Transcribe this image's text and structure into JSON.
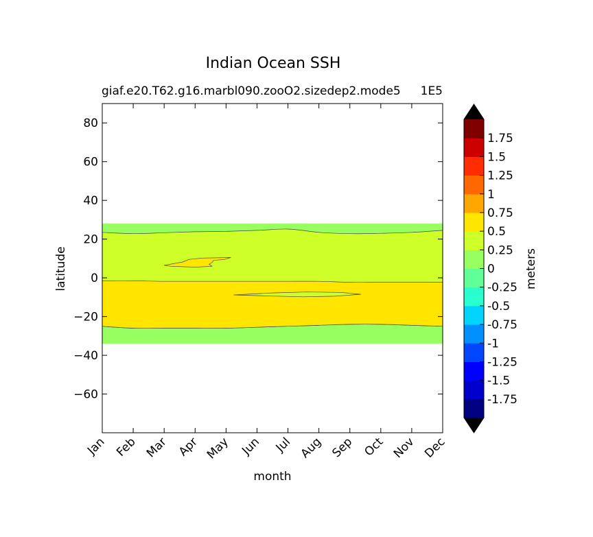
{
  "chart_data": {
    "type": "heatmap",
    "title": "Indian Ocean SSH",
    "subtitle": "giaf.e20.T62.g16.marbl090.zooO2.sizedep2.mode5",
    "subtitle_right": "1E5",
    "xlabel": "month",
    "ylabel": "latitude",
    "colorbar_label": "meters",
    "x_categories": [
      "Jan",
      "Feb",
      "Mar",
      "Apr",
      "May",
      "Jun",
      "Jul",
      "Aug",
      "Sep",
      "Oct",
      "Nov",
      "Dec"
    ],
    "ylim": [
      -80,
      90
    ],
    "y_ticks": [
      80,
      60,
      40,
      20,
      0,
      -20,
      -40,
      -60
    ],
    "y_tick_labels": [
      "80",
      "60",
      "40",
      "20",
      "0",
      "−20",
      "−40",
      "−60"
    ],
    "colorbar": {
      "levels": [
        -2,
        -1.75,
        -1.5,
        -1.25,
        -1,
        -0.75,
        -0.5,
        -0.25,
        0,
        0.25,
        0.5,
        0.75,
        1,
        1.25,
        1.5,
        1.75,
        2
      ],
      "colors": [
        "#000080",
        "#0000cd",
        "#0000ff",
        "#0046ff",
        "#0090ff",
        "#00d4ff",
        "#29ffce",
        "#60ff97",
        "#97ff60",
        "#ceff29",
        "#ffe500",
        "#ffa600",
        "#ff6800",
        "#ff2d00",
        "#cd0000",
        "#800000"
      ],
      "under_color": "#000000",
      "over_color": "#000000",
      "tick_values": [
        1.75,
        1.5,
        1.25,
        1,
        0.75,
        0.5,
        0.25,
        0,
        -0.25,
        -0.5,
        -0.75,
        -1,
        -1.25,
        -1.5,
        -1.75
      ],
      "tick_labels": [
        "1.75",
        "1.5",
        "1.25",
        "1",
        "0.75",
        "0.5",
        "0.25",
        "0",
        "-0.25",
        "-0.5",
        "-0.75",
        "-1",
        "-1.25",
        "-1.5",
        "-1.75"
      ]
    },
    "regions": [
      {
        "name": "data-extent",
        "color": "#97ff60",
        "lat_range": [
          -34,
          28
        ]
      },
      {
        "name": "band-0.25-to-0.5",
        "color": "#ceff29",
        "north_edge": [
          23.5,
          22.8,
          23.3,
          23.8,
          24,
          24.5,
          25.2,
          23.5,
          22.8,
          23,
          23.5,
          24.5
        ],
        "south_edge": [
          -25,
          -26,
          -26,
          -26,
          -26,
          -25.5,
          -25,
          -24.5,
          -24,
          -24,
          -24.5,
          -25
        ]
      },
      {
        "name": "band-0.5-to-0.75-main",
        "color": "#ffe500",
        "north_edge": [
          -1.5,
          -1.5,
          -1.8,
          -1.8,
          -1.8,
          -1.8,
          -1.8,
          -1.8,
          -2.3,
          -2.3,
          -2.3,
          -2.3
        ],
        "south_edge": [
          -25,
          -26,
          -26,
          -26,
          -26,
          -25.5,
          -25,
          -24.5,
          -24,
          -24,
          -24.5,
          -25
        ]
      },
      {
        "name": "patch-0.5-to-0.75-north",
        "color": "#ffe500",
        "outline": [
          [
            2.0,
            6.5
          ],
          [
            2.6,
            8.2
          ],
          [
            2.8,
            9.5
          ],
          [
            3.2,
            10.2
          ],
          [
            4.15,
            10.5
          ],
          [
            3.95,
            9.5
          ],
          [
            3.6,
            9
          ],
          [
            3.55,
            8
          ],
          [
            3.45,
            7
          ],
          [
            3.55,
            6
          ],
          [
            3.0,
            5.5
          ],
          [
            2.2,
            6
          ]
        ]
      },
      {
        "name": "patch-0.25-to-0.5-south",
        "color": "#ceff29",
        "outline": [
          [
            4.25,
            -8.8
          ],
          [
            5.5,
            -7.8
          ],
          [
            6.6,
            -7.3
          ],
          [
            7.7,
            -7.5
          ],
          [
            8.35,
            -8.5
          ],
          [
            7.5,
            -9.5
          ],
          [
            6.5,
            -9.8
          ],
          [
            5.5,
            -9.4
          ]
        ]
      }
    ]
  }
}
